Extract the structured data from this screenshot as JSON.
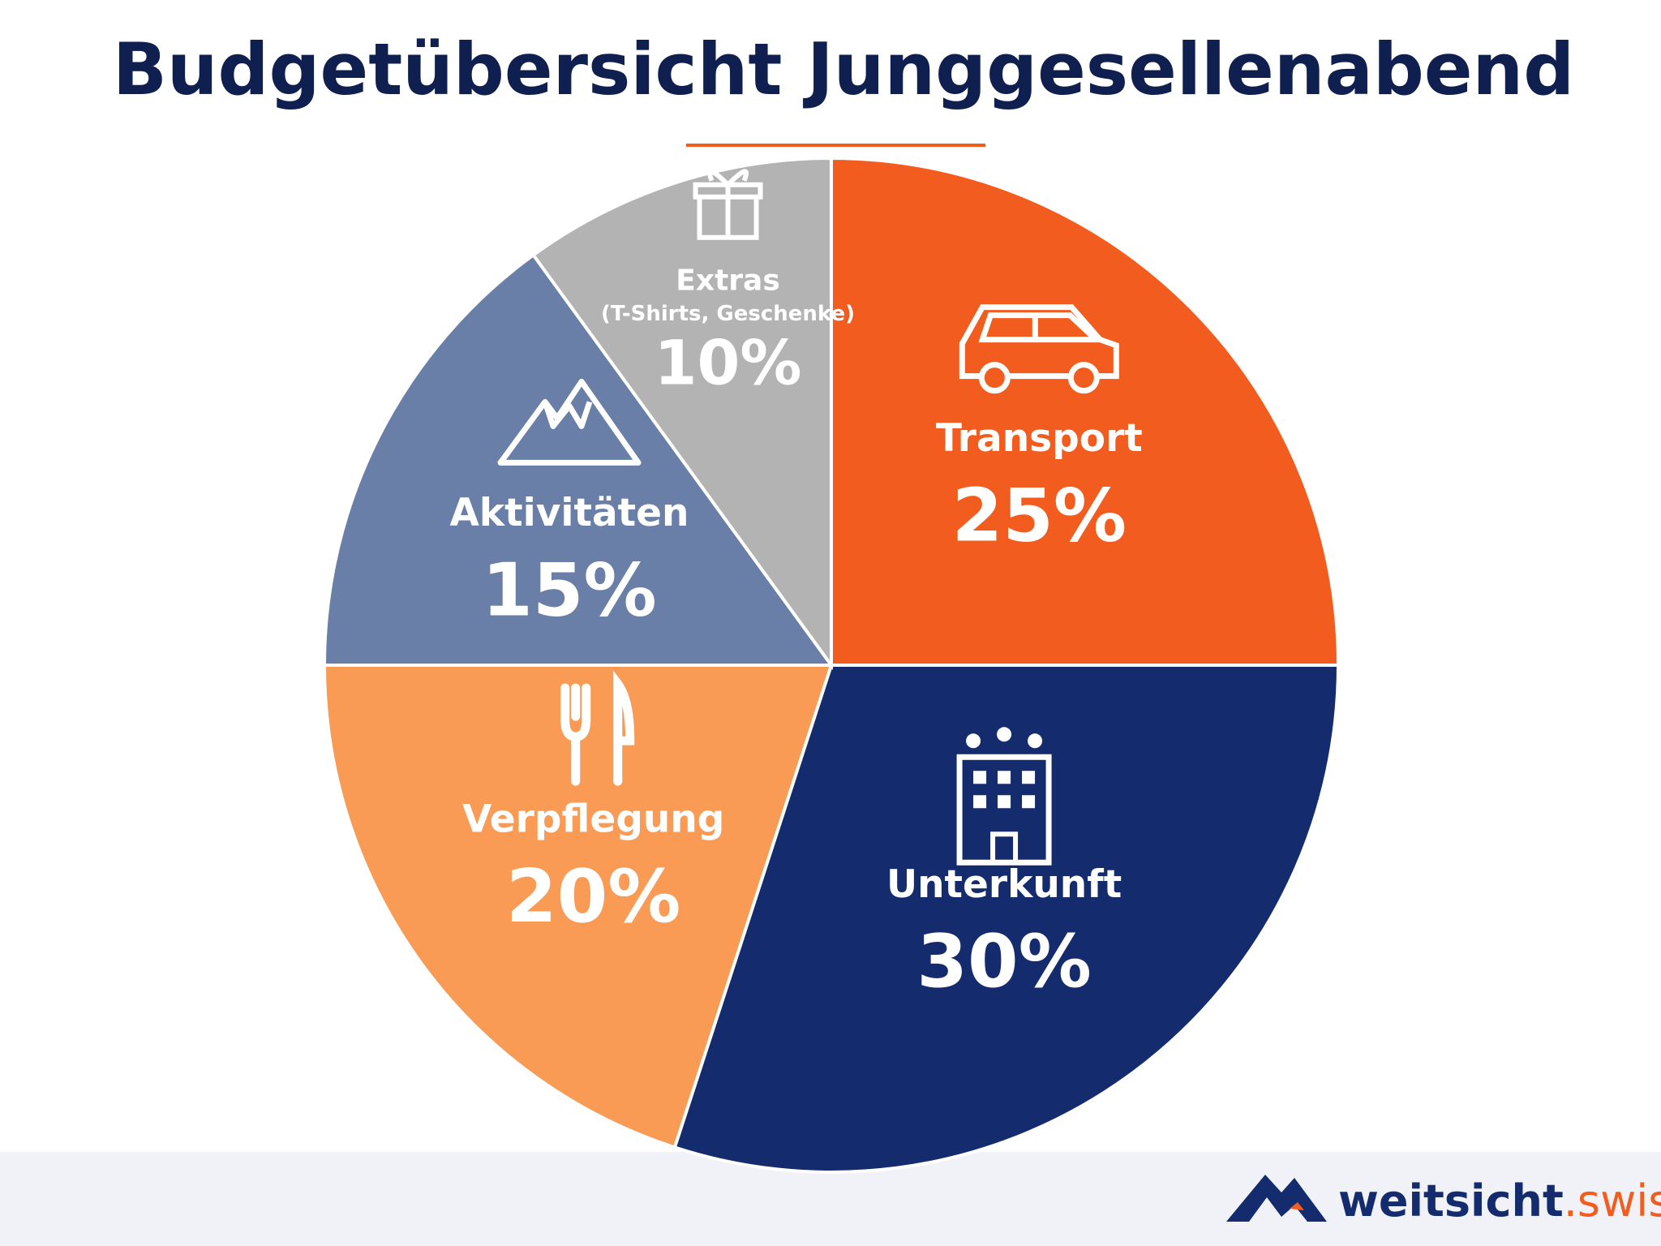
{
  "chart_data": {
    "type": "pie",
    "title": "Budgetübersicht Junggesellenabend",
    "categories": [
      "Transport",
      "Unterkunft",
      "Verpflegung",
      "Aktivitäten",
      "Extras"
    ],
    "values": [
      25,
      30,
      20,
      15,
      10
    ],
    "value_labels": [
      "25%",
      "30%",
      "20%",
      "15%",
      "10%"
    ],
    "notes": [
      null,
      null,
      null,
      null,
      "(T-Shirts, Geschenke)"
    ],
    "colors": [
      "#f25c1e",
      "#142c6e",
      "#f99a55",
      "#6a7fa8",
      "#b3b3b3"
    ]
  },
  "brand": {
    "name": "weitsicht",
    "suffix": ".swiss"
  }
}
